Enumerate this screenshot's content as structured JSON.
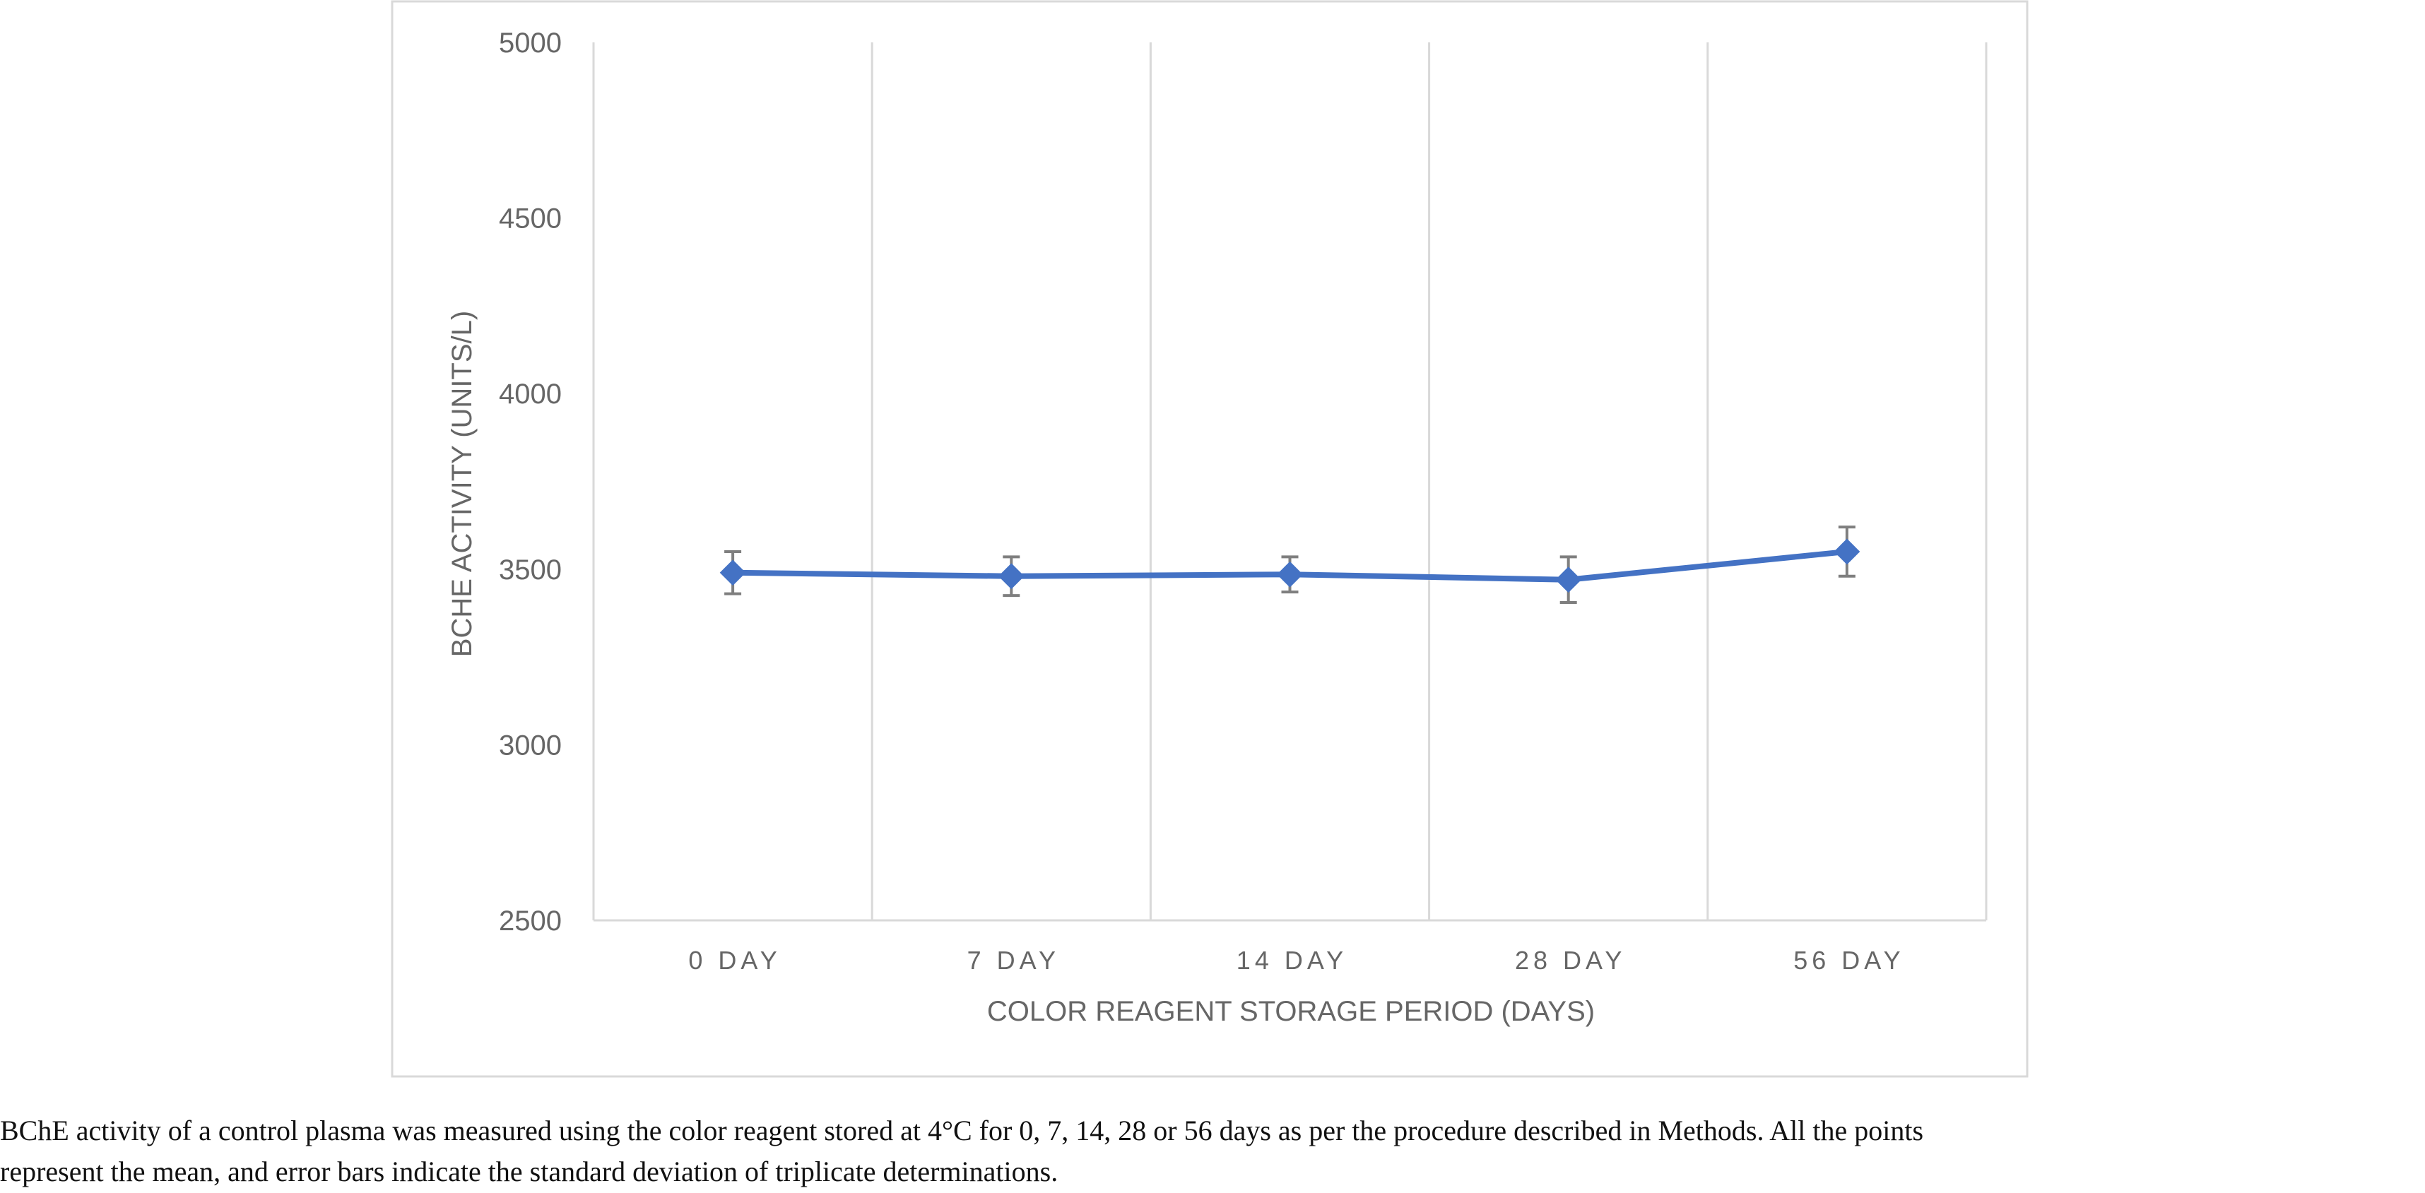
{
  "chart_data": {
    "type": "line",
    "title": "",
    "xlabel": "COLOR REAGENT STORAGE PERIOD (DAYS)",
    "ylabel": "BCHE ACTIVITY (UNITS/L)",
    "categories": [
      "0 DAY",
      "7 DAY",
      "14 DAY",
      "28 DAY",
      "56 DAY"
    ],
    "series": [
      {
        "values": [
          3490,
          3480,
          3485,
          3470,
          3550
        ],
        "error": [
          60,
          55,
          50,
          65,
          70
        ],
        "color": "#4472C4",
        "marker": "diamond"
      }
    ],
    "ylim": [
      2500,
      5000
    ],
    "yticks": [
      "2500",
      "3000",
      "3500",
      "4000",
      "4500",
      "5000"
    ],
    "grid": "vertical",
    "legend": "none"
  },
  "caption": {
    "line1": "BChE activity of a control plasma was measured using the color reagent stored at 4°C for 0, 7, 14, 28 or 56 days as per the procedure described in Methods. All the points",
    "line2": "represent the mean, and error bars indicate the standard deviation of triplicate determinations."
  }
}
